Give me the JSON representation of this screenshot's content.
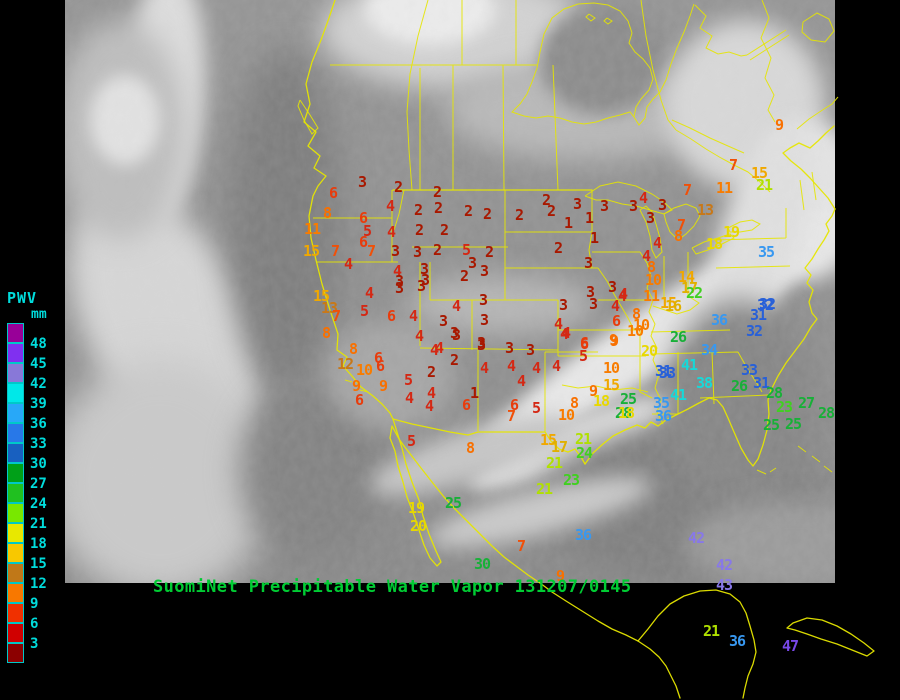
{
  "header": {
    "title": "SuomiNet Precipitable Water Vapor 131207/0145",
    "title_color": "#00cc33"
  },
  "legend": {
    "title": "PWV",
    "unit": "mm",
    "text_color": "#00dcdc",
    "entries": [
      {
        "label": "48",
        "color": "#980098"
      },
      {
        "label": "45",
        "color": "#8030f0"
      },
      {
        "label": "42",
        "color": "#8878d8"
      },
      {
        "label": "39",
        "color": "#00e8e8"
      },
      {
        "label": "36",
        "color": "#28a8f8"
      },
      {
        "label": "33",
        "color": "#2878e8"
      },
      {
        "label": "30",
        "color": "#1860c0"
      },
      {
        "label": "27",
        "color": "#00a018"
      },
      {
        "label": "24",
        "color": "#20c020"
      },
      {
        "label": "21",
        "color": "#78e800"
      },
      {
        "label": "18",
        "color": "#e8e800"
      },
      {
        "label": "15",
        "color": "#f8c800"
      },
      {
        "label": "12",
        "color": "#c07818"
      },
      {
        "label": "9",
        "color": "#f87800"
      },
      {
        "label": "6",
        "color": "#f03000"
      },
      {
        "label": "3",
        "color": "#d00000"
      }
    ],
    "footer_swatch_color": "#8c0000"
  },
  "map": {
    "line_color": "#e6e600",
    "palette": [
      {
        "min": 1,
        "max": 3,
        "color": "#a81800"
      },
      {
        "min": 4,
        "max": 5,
        "color": "#d42814"
      },
      {
        "min": 6,
        "max": 6,
        "color": "#e83c0c"
      },
      {
        "min": 7,
        "max": 7,
        "color": "#f05008"
      },
      {
        "min": 8,
        "max": 9,
        "color": "#f87000"
      },
      {
        "min": 10,
        "max": 11,
        "color": "#f87c00"
      },
      {
        "min": 12,
        "max": 13,
        "color": "#c87818"
      },
      {
        "min": 14,
        "max": 15,
        "color": "#f0a800"
      },
      {
        "min": 16,
        "max": 17,
        "color": "#e0b000"
      },
      {
        "min": 18,
        "max": 20,
        "color": "#e8d800"
      },
      {
        "min": 21,
        "max": 21,
        "color": "#b0e000"
      },
      {
        "min": 22,
        "max": 24,
        "color": "#40d020"
      },
      {
        "min": 25,
        "max": 30,
        "color": "#18b038"
      },
      {
        "min": 31,
        "max": 33,
        "color": "#2860d8"
      },
      {
        "min": 34,
        "max": 37,
        "color": "#3898f0"
      },
      {
        "min": 38,
        "max": 41,
        "color": "#18d8d8"
      },
      {
        "min": 42,
        "max": 44,
        "color": "#8878e8"
      },
      {
        "min": 45,
        "max": 48,
        "color": "#7848e8"
      }
    ],
    "stations": [
      [
        3,
        362,
        183
      ],
      [
        6,
        333,
        194
      ],
      [
        2,
        398,
        188
      ],
      [
        8,
        327,
        214
      ],
      [
        4,
        390,
        207
      ],
      [
        2,
        437,
        193
      ],
      [
        6,
        363,
        219
      ],
      [
        2,
        418,
        211
      ],
      [
        2,
        438,
        209
      ],
      [
        2,
        468,
        212
      ],
      [
        2,
        487,
        215
      ],
      [
        11,
        312,
        230
      ],
      [
        5,
        367,
        232
      ],
      [
        4,
        391,
        233
      ],
      [
        2,
        419,
        231
      ],
      [
        2,
        444,
        231
      ],
      [
        15,
        311,
        252
      ],
      [
        7,
        335,
        252
      ],
      [
        6,
        363,
        243
      ],
      [
        7,
        371,
        252
      ],
      [
        3,
        395,
        252
      ],
      [
        3,
        417,
        253
      ],
      [
        2,
        437,
        251
      ],
      [
        5,
        466,
        251
      ],
      [
        2,
        489,
        253
      ],
      [
        4,
        348,
        265
      ],
      [
        3,
        472,
        264
      ],
      [
        4,
        397,
        272
      ],
      [
        3,
        424,
        270
      ],
      [
        2,
        464,
        277
      ],
      [
        3,
        484,
        272
      ],
      [
        3,
        399,
        282
      ],
      [
        3,
        425,
        281
      ],
      [
        2,
        546,
        201
      ],
      [
        2,
        551,
        212
      ],
      [
        3,
        577,
        205
      ],
      [
        3,
        604,
        207
      ],
      [
        2,
        519,
        216
      ],
      [
        1,
        568,
        224
      ],
      [
        1,
        589,
        219
      ],
      [
        4,
        643,
        199
      ],
      [
        3,
        633,
        207
      ],
      [
        3,
        662,
        206
      ],
      [
        3,
        650,
        219
      ],
      [
        1,
        594,
        239
      ],
      [
        2,
        558,
        249
      ],
      [
        4,
        657,
        244
      ],
      [
        3,
        588,
        264
      ],
      [
        4,
        646,
        257
      ],
      [
        8,
        651,
        268
      ],
      [
        9,
        779,
        126
      ],
      [
        7,
        733,
        166
      ],
      [
        15,
        759,
        174
      ],
      [
        7,
        687,
        191
      ],
      [
        11,
        724,
        189
      ],
      [
        21,
        764,
        186
      ],
      [
        13,
        705,
        211
      ],
      [
        7,
        681,
        226
      ],
      [
        19,
        731,
        233
      ],
      [
        18,
        714,
        245
      ],
      [
        8,
        678,
        237
      ],
      [
        35,
        766,
        253
      ],
      [
        32,
        767,
        305
      ],
      [
        10,
        653,
        281
      ],
      [
        14,
        686,
        278
      ],
      [
        3,
        590,
        293
      ],
      [
        3,
        612,
        288
      ],
      [
        4,
        622,
        297
      ],
      [
        11,
        651,
        297
      ],
      [
        17,
        689,
        289
      ],
      [
        22,
        694,
        294
      ],
      [
        3,
        563,
        306
      ],
      [
        3,
        593,
        305
      ],
      [
        4,
        615,
        307
      ],
      [
        8,
        636,
        315
      ],
      [
        15,
        668,
        304
      ],
      [
        16,
        673,
        307
      ],
      [
        4,
        558,
        325
      ],
      [
        6,
        616,
        322
      ],
      [
        10,
        641,
        326
      ],
      [
        4,
        564,
        335
      ],
      [
        9,
        613,
        341
      ],
      [
        6,
        584,
        345
      ],
      [
        26,
        678,
        338
      ],
      [
        20,
        649,
        352
      ],
      [
        10,
        635,
        332
      ],
      [
        4,
        623,
        295
      ],
      [
        15,
        321,
        297
      ],
      [
        13,
        329,
        309
      ],
      [
        7,
        336,
        317
      ],
      [
        8,
        326,
        334
      ],
      [
        4,
        369,
        294
      ],
      [
        5,
        364,
        312
      ],
      [
        6,
        391,
        317
      ],
      [
        4,
        413,
        317
      ],
      [
        3,
        399,
        289
      ],
      [
        3,
        421,
        287
      ],
      [
        4,
        419,
        337
      ],
      [
        3,
        443,
        322
      ],
      [
        4,
        456,
        307
      ],
      [
        3,
        483,
        301
      ],
      [
        3,
        484,
        321
      ],
      [
        3,
        456,
        336
      ],
      [
        4,
        439,
        349
      ],
      [
        3,
        481,
        346
      ],
      [
        3,
        509,
        349
      ],
      [
        8,
        353,
        350
      ],
      [
        6,
        378,
        359
      ],
      [
        12,
        345,
        365
      ],
      [
        10,
        364,
        371
      ],
      [
        6,
        380,
        367
      ],
      [
        2,
        431,
        373
      ],
      [
        2,
        454,
        361
      ],
      [
        4,
        484,
        369
      ],
      [
        4,
        511,
        367
      ],
      [
        9,
        356,
        387
      ],
      [
        9,
        383,
        387
      ],
      [
        5,
        408,
        381
      ],
      [
        4,
        409,
        399
      ],
      [
        4,
        431,
        394
      ],
      [
        1,
        474,
        394
      ],
      [
        6,
        359,
        401
      ],
      [
        4,
        429,
        407
      ],
      [
        6,
        466,
        406
      ],
      [
        6,
        514,
        406
      ],
      [
        7,
        511,
        417
      ],
      [
        3,
        530,
        351
      ],
      [
        3,
        454,
        334
      ],
      [
        3,
        481,
        344
      ],
      [
        4,
        434,
        351
      ],
      [
        4,
        536,
        369
      ],
      [
        4,
        556,
        367
      ],
      [
        4,
        566,
        334
      ],
      [
        6,
        584,
        344
      ],
      [
        5,
        583,
        357
      ],
      [
        9,
        614,
        342
      ],
      [
        31,
        663,
        372
      ],
      [
        10,
        611,
        369
      ],
      [
        4,
        521,
        382
      ],
      [
        15,
        611,
        386
      ],
      [
        9,
        593,
        392
      ],
      [
        18,
        601,
        402
      ],
      [
        25,
        628,
        400
      ],
      [
        8,
        574,
        404
      ],
      [
        5,
        536,
        409
      ],
      [
        28,
        623,
        414
      ],
      [
        10,
        566,
        416
      ],
      [
        8,
        470,
        449
      ],
      [
        15,
        548,
        441
      ],
      [
        17,
        559,
        448
      ],
      [
        21,
        583,
        440
      ],
      [
        24,
        584,
        454
      ],
      [
        21,
        554,
        464
      ],
      [
        23,
        571,
        481
      ],
      [
        21,
        544,
        490
      ],
      [
        32,
        765,
        306
      ],
      [
        31,
        758,
        316
      ],
      [
        36,
        719,
        321
      ],
      [
        32,
        754,
        332
      ],
      [
        34,
        709,
        351
      ],
      [
        41,
        689,
        366
      ],
      [
        33,
        667,
        374
      ],
      [
        33,
        749,
        371
      ],
      [
        38,
        704,
        384
      ],
      [
        31,
        761,
        384
      ],
      [
        26,
        739,
        387
      ],
      [
        41,
        678,
        396
      ],
      [
        35,
        661,
        404
      ],
      [
        18,
        626,
        414
      ],
      [
        36,
        663,
        417
      ],
      [
        28,
        774,
        394
      ],
      [
        23,
        784,
        408
      ],
      [
        27,
        806,
        404
      ],
      [
        28,
        826,
        414
      ],
      [
        25,
        771,
        426
      ],
      [
        25,
        793,
        425
      ],
      [
        5,
        411,
        442
      ],
      [
        19,
        416,
        509
      ],
      [
        25,
        453,
        504
      ],
      [
        20,
        418,
        527
      ],
      [
        36,
        583,
        536
      ],
      [
        7,
        521,
        547
      ],
      [
        30,
        482,
        565
      ],
      [
        42,
        696,
        539
      ],
      [
        42,
        724,
        566
      ],
      [
        43,
        724,
        586
      ],
      [
        21,
        711,
        632
      ],
      [
        36,
        737,
        642
      ],
      [
        47,
        790,
        647
      ],
      [
        9,
        560,
        577
      ]
    ]
  }
}
